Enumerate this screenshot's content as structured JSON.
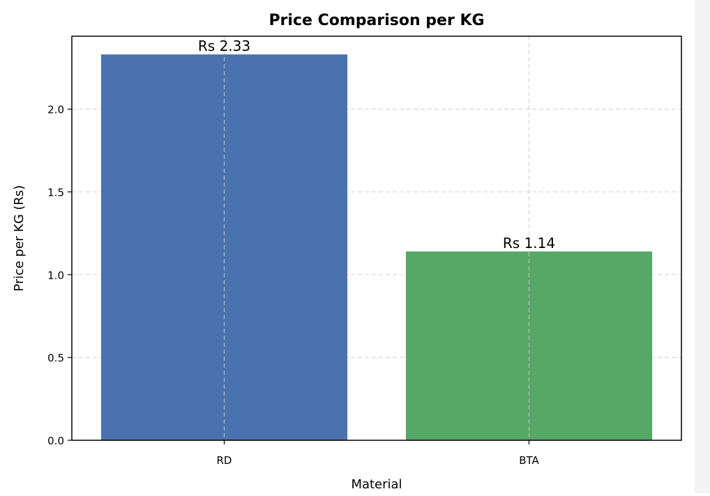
{
  "chart_data": {
    "type": "bar",
    "title": "Price Comparison per KG",
    "xlabel": "Material",
    "ylabel": "Price per KG (Rs)",
    "categories": [
      "RD",
      "BTA"
    ],
    "values": [
      2.33,
      1.14
    ],
    "data_labels": [
      "Rs 2.33",
      "Rs 1.14"
    ],
    "colors": [
      "#4a72ae",
      "#57a767"
    ],
    "ylim": [
      0,
      2.44
    ],
    "yticks": [
      0.0,
      0.5,
      1.0,
      1.5,
      2.0
    ],
    "ytick_labels": [
      "0.0",
      "0.5",
      "1.0",
      "1.5",
      "2.0"
    ],
    "grid": true,
    "legend": false
  }
}
